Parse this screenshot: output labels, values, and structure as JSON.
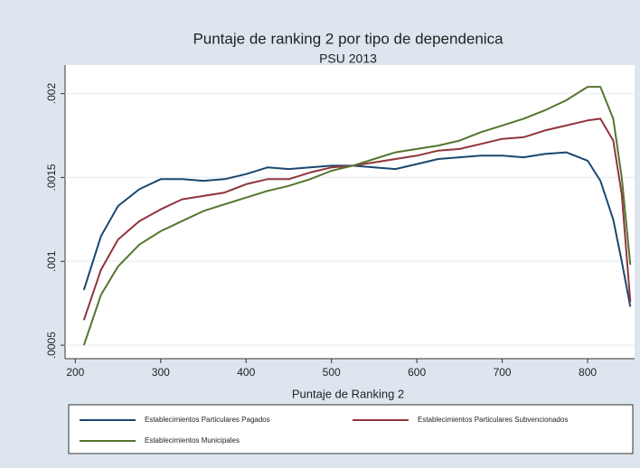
{
  "chart_data": {
    "type": "line",
    "title": "Puntaje de ranking 2 por tipo de dependenica",
    "subtitle": "PSU 2013",
    "x_label": "Puntaje de Ranking 2",
    "x": [
      210,
      230,
      250,
      275,
      300,
      325,
      350,
      375,
      400,
      425,
      450,
      475,
      500,
      525,
      550,
      575,
      600,
      625,
      650,
      675,
      700,
      725,
      750,
      775,
      800,
      815,
      830,
      840,
      850
    ],
    "series": [
      {
        "name": "Establecimientos Particulares Pagados",
        "color": "#1a476f",
        "values": [
          0.00083,
          0.00115,
          0.00133,
          0.00143,
          0.00149,
          0.00149,
          0.00148,
          0.00149,
          0.00152,
          0.00156,
          0.00155,
          0.00156,
          0.00157,
          0.00157,
          0.00156,
          0.00155,
          0.00158,
          0.00161,
          0.00162,
          0.00163,
          0.00163,
          0.00162,
          0.00164,
          0.00165,
          0.0016,
          0.00148,
          0.00125,
          0.001,
          0.00073
        ]
      },
      {
        "name": "Establecimientos Particulares Subvencionados",
        "color": "#90353b",
        "values": [
          0.00065,
          0.00095,
          0.00113,
          0.00124,
          0.00131,
          0.00137,
          0.00139,
          0.00141,
          0.00146,
          0.00149,
          0.00149,
          0.00153,
          0.00156,
          0.00157,
          0.00159,
          0.00161,
          0.00163,
          0.00166,
          0.00167,
          0.0017,
          0.00173,
          0.00174,
          0.00178,
          0.00181,
          0.00184,
          0.00185,
          0.00172,
          0.0014,
          0.00076
        ]
      },
      {
        "name": "Establecimientos Municipales",
        "color": "#55752f",
        "values": [
          0.0005,
          0.0008,
          0.00097,
          0.0011,
          0.00118,
          0.00124,
          0.0013,
          0.00134,
          0.00138,
          0.00142,
          0.00145,
          0.00149,
          0.00154,
          0.00157,
          0.00161,
          0.00165,
          0.00167,
          0.00169,
          0.00172,
          0.00177,
          0.00181,
          0.00185,
          0.0019,
          0.00196,
          0.00204,
          0.00204,
          0.00185,
          0.0015,
          0.00098
        ]
      }
    ],
    "xlim": [
      188,
      855
    ],
    "xticks": [
      200,
      300,
      400,
      500,
      600,
      700,
      800
    ],
    "ylim": [
      0.00042,
      0.00217
    ],
    "yticks": [
      {
        "value": 0.0005,
        "label": ".0005"
      },
      {
        "value": 0.001,
        "label": ".001"
      },
      {
        "value": 0.0015,
        "label": ".0015"
      },
      {
        "value": 0.002,
        "label": ".002"
      }
    ],
    "grid": true
  }
}
